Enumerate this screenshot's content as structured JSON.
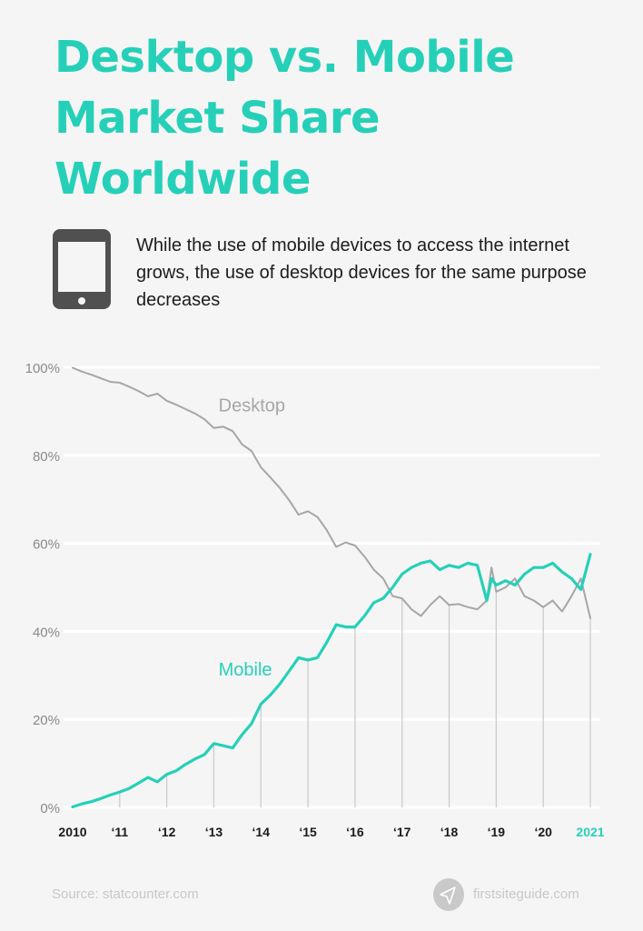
{
  "header": {
    "title_lines": [
      "Desktop vs. Mobile",
      "Market Share",
      "Worldwide"
    ],
    "subtitle": "While the use of mobile devices to access the internet grows, the use of desktop devices for the same purpose decreases",
    "icon": "mobile-phone-icon"
  },
  "colors": {
    "accent": "#26d0b8",
    "desktop_line": "#a6a6a6",
    "mobile_line": "#26d0b8",
    "background": "#f5f5f5",
    "gridline": "#ffffff",
    "year_marker": "#cccccc"
  },
  "chart_data": {
    "type": "line",
    "title": "Desktop vs. Mobile Market Share Worldwide",
    "xlabel": "",
    "ylabel": "",
    "ylim": [
      0,
      100
    ],
    "y_ticks": [
      "0%",
      "20%",
      "40%",
      "60%",
      "80%",
      "100%"
    ],
    "x_ticks": [
      "2010",
      "‘11",
      "‘12",
      "‘13",
      "‘14",
      "‘15",
      "‘16",
      "‘17",
      "‘18",
      "‘19",
      "‘20",
      "2021"
    ],
    "grid": true,
    "legend": "inline labels",
    "series": [
      {
        "name": "Desktop",
        "color": "#a6a6a6",
        "x": [
          2010.0,
          2010.2,
          2010.4,
          2010.6,
          2010.8,
          2011.0,
          2011.2,
          2011.4,
          2011.6,
          2011.8,
          2012.0,
          2012.2,
          2012.4,
          2012.6,
          2012.8,
          2013.0,
          2013.2,
          2013.4,
          2013.6,
          2013.8,
          2014.0,
          2014.2,
          2014.4,
          2014.6,
          2014.8,
          2015.0,
          2015.2,
          2015.4,
          2015.6,
          2015.8,
          2016.0,
          2016.2,
          2016.4,
          2016.6,
          2016.8,
          2017.0,
          2017.2,
          2017.4,
          2017.6,
          2017.8,
          2018.0,
          2018.2,
          2018.4,
          2018.6,
          2018.8,
          2018.9,
          2019.0,
          2019.2,
          2019.4,
          2019.6,
          2019.8,
          2020.0,
          2020.2,
          2020.4,
          2020.6,
          2020.8,
          2021.0
        ],
        "values": [
          99.9,
          99.0,
          98.3,
          97.5,
          96.7,
          96.5,
          95.6,
          94.6,
          93.4,
          94.0,
          92.4,
          91.5,
          90.5,
          89.5,
          88.2,
          86.2,
          86.5,
          85.5,
          82.5,
          81.0,
          77.3,
          75.0,
          72.6,
          69.8,
          66.5,
          67.3,
          66.0,
          63.0,
          59.2,
          60.2,
          59.5,
          57.0,
          54.0,
          52.0,
          48.0,
          47.5,
          45.0,
          43.5,
          46.0,
          48.0,
          46.0,
          46.2,
          45.5,
          45.0,
          47.0,
          54.5,
          49.0,
          50.0,
          52.0,
          48.0,
          47.0,
          45.5,
          47.0,
          44.5,
          48.0,
          52.0,
          43.0
        ],
        "label_position": {
          "x": 2013.1,
          "y": 90
        }
      },
      {
        "name": "Mobile",
        "color": "#26d0b8",
        "x": [
          2010.0,
          2010.2,
          2010.4,
          2010.6,
          2010.8,
          2011.0,
          2011.2,
          2011.4,
          2011.6,
          2011.8,
          2012.0,
          2012.2,
          2012.4,
          2012.6,
          2012.8,
          2013.0,
          2013.2,
          2013.4,
          2013.6,
          2013.8,
          2014.0,
          2014.2,
          2014.4,
          2014.6,
          2014.8,
          2015.0,
          2015.2,
          2015.4,
          2015.6,
          2015.8,
          2016.0,
          2016.2,
          2016.4,
          2016.6,
          2016.8,
          2017.0,
          2017.2,
          2017.4,
          2017.6,
          2017.8,
          2018.0,
          2018.2,
          2018.4,
          2018.6,
          2018.8,
          2018.9,
          2019.0,
          2019.2,
          2019.4,
          2019.6,
          2019.8,
          2020.0,
          2020.2,
          2020.4,
          2020.6,
          2020.8,
          2021.0
        ],
        "values": [
          0.1,
          0.8,
          1.3,
          2.0,
          2.8,
          3.5,
          4.3,
          5.5,
          6.8,
          5.8,
          7.5,
          8.3,
          9.8,
          11.0,
          12.0,
          14.5,
          14.0,
          13.5,
          16.5,
          19.0,
          23.5,
          25.5,
          28.0,
          31.0,
          34.0,
          33.5,
          34.0,
          37.5,
          41.5,
          41.0,
          41.0,
          43.5,
          46.5,
          47.5,
          50.0,
          53.0,
          54.5,
          55.5,
          56.0,
          54.0,
          55.0,
          54.5,
          55.5,
          55.0,
          47.0,
          52.0,
          50.5,
          51.5,
          50.5,
          53.0,
          54.5,
          54.5,
          55.5,
          53.5,
          52.0,
          49.5,
          57.5
        ],
        "label_position": {
          "x": 2013.1,
          "y": 30
        }
      }
    ]
  },
  "footer": {
    "source": "Source: statcounter.com",
    "brand": "firstsiteguide.com",
    "brand_icon": "paper-plane-icon"
  }
}
